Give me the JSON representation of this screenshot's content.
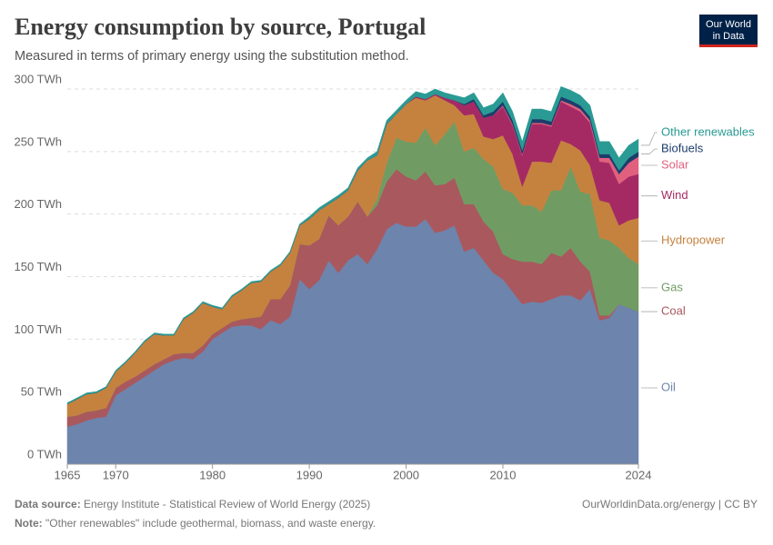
{
  "chart_data": {
    "type": "stacked-area",
    "title": "Energy consumption by source, Portugal",
    "subtitle": "Measured in terms of primary energy using the substitution method.",
    "logo": [
      "Our World",
      "in Data"
    ],
    "source_label": "Data source:",
    "source": "Energy Institute - Statistical Review of World Energy (2025)",
    "source_link": "OurWorldinData.org/energy | CC BY",
    "note_label": "Note:",
    "note": "\"Other renewables\" include geothermal, biomass, and waste energy.",
    "x": [
      1965,
      1966,
      1967,
      1968,
      1969,
      1970,
      1971,
      1972,
      1973,
      1974,
      1975,
      1976,
      1977,
      1978,
      1979,
      1980,
      1981,
      1982,
      1983,
      1984,
      1985,
      1986,
      1987,
      1988,
      1989,
      1990,
      1991,
      1992,
      1993,
      1994,
      1995,
      1996,
      1997,
      1998,
      1999,
      2000,
      2001,
      2002,
      2003,
      2004,
      2005,
      2006,
      2007,
      2008,
      2009,
      2010,
      2011,
      2012,
      2013,
      2014,
      2015,
      2016,
      2017,
      2018,
      2019,
      2020,
      2021,
      2022,
      2023,
      2024
    ],
    "xlim": [
      1965,
      2024
    ],
    "xticks": [
      1965,
      1970,
      1980,
      1990,
      2000,
      2010,
      2024
    ],
    "ylim": [
      0,
      300
    ],
    "yticks": [
      {
        "value": 0,
        "label": "0 TWh"
      },
      {
        "value": 50,
        "label": "50 TWh"
      },
      {
        "value": 100,
        "label": "100 TWh"
      },
      {
        "value": 150,
        "label": "150 TWh"
      },
      {
        "value": 200,
        "label": "200 TWh"
      },
      {
        "value": 250,
        "label": "250 TWh"
      },
      {
        "value": 300,
        "label": "300 TWh"
      }
    ],
    "grid": true,
    "series": [
      {
        "name": "Oil",
        "color": "#6d84ad",
        "values": [
          30,
          32,
          35,
          37,
          38,
          55,
          60,
          65,
          70,
          75,
          80,
          83,
          85,
          84,
          90,
          100,
          105,
          110,
          111,
          111,
          108,
          115,
          112,
          118,
          148,
          140,
          147,
          163,
          153,
          163,
          168,
          160,
          172,
          188,
          193,
          190,
          190,
          196,
          185,
          187,
          191,
          170,
          173,
          163,
          153,
          148,
          138,
          128,
          130,
          129,
          132,
          135,
          135,
          131,
          140,
          115,
          117,
          128,
          125,
          122
        ]
      },
      {
        "name": "Coal",
        "color": "#a9585e",
        "values": [
          8,
          7,
          7,
          6,
          7,
          6,
          6,
          5,
          5,
          5,
          4,
          5,
          4,
          5,
          5,
          4,
          4,
          4,
          5,
          6,
          10,
          17,
          20,
          25,
          28,
          35,
          33,
          36,
          38,
          35,
          42,
          38,
          35,
          38,
          43,
          40,
          37,
          38,
          38,
          37,
          38,
          38,
          35,
          31,
          33,
          20,
          26,
          34,
          32,
          31,
          37,
          31,
          38,
          31,
          14,
          4,
          2,
          0,
          0,
          0
        ]
      },
      {
        "name": "Gas",
        "color": "#709c63",
        "values": [
          0,
          0,
          0,
          0,
          0,
          0,
          0,
          0,
          0,
          0,
          0,
          0,
          0,
          0,
          0,
          0,
          0,
          0,
          0,
          0,
          0,
          0,
          0,
          0,
          0,
          0,
          0,
          0,
          0,
          0,
          0,
          0,
          5,
          15,
          25,
          28,
          30,
          35,
          32,
          40,
          45,
          42,
          45,
          50,
          52,
          52,
          53,
          45,
          45,
          42,
          50,
          53,
          65,
          56,
          62,
          62,
          60,
          45,
          40,
          38
        ]
      },
      {
        "name": "Hydropower",
        "color": "#c5823f",
        "values": [
          10,
          13,
          14,
          14,
          16,
          13,
          15,
          19,
          23,
          24,
          19,
          15,
          27,
          32,
          34,
          22,
          15,
          20,
          23,
          28,
          28,
          22,
          27,
          26,
          15,
          21,
          23,
          9,
          22,
          21,
          25,
          45,
          35,
          31,
          19,
          30,
          36,
          22,
          40,
          27,
          13,
          29,
          27,
          18,
          22,
          43,
          31,
          15,
          35,
          40,
          22,
          40,
          18,
          33,
          23,
          30,
          30,
          18,
          30,
          37
        ]
      },
      {
        "name": "Wind",
        "color": "#a52a64",
        "values": [
          0,
          0,
          0,
          0,
          0,
          0,
          0,
          0,
          0,
          0,
          0,
          0,
          0,
          0,
          0,
          0,
          0,
          0,
          0,
          0,
          0,
          0,
          0,
          0,
          0,
          0,
          0,
          0,
          0,
          0,
          0,
          0,
          0,
          0,
          0,
          0,
          1,
          1,
          1,
          2,
          4,
          8,
          10,
          15,
          19,
          23,
          23,
          25,
          30,
          30,
          29,
          31,
          30,
          31,
          34,
          31,
          32,
          33,
          35,
          35
        ]
      },
      {
        "name": "Solar",
        "color": "#e0607e",
        "values": [
          0,
          0,
          0,
          0,
          0,
          0,
          0,
          0,
          0,
          0,
          0,
          0,
          0,
          0,
          0,
          0,
          0,
          0,
          0,
          0,
          0,
          0,
          0,
          0,
          0,
          0,
          0,
          0,
          0,
          0,
          0,
          0,
          0,
          0,
          0,
          0,
          0,
          0,
          0,
          0,
          0,
          0,
          0,
          0,
          0,
          1,
          1,
          1,
          1,
          1,
          1,
          1,
          2,
          2,
          2,
          3,
          4,
          8,
          11,
          14
        ]
      },
      {
        "name": "Biofuels",
        "color": "#1d3d6b",
        "values": [
          0,
          0,
          0,
          0,
          0,
          0,
          0,
          0,
          0,
          0,
          0,
          0,
          0,
          0,
          0,
          0,
          0,
          0,
          0,
          0,
          0,
          0,
          0,
          0,
          0,
          0,
          0,
          0,
          0,
          0,
          0,
          0,
          0,
          0,
          0,
          0,
          0,
          0,
          0,
          0,
          0,
          1,
          2,
          2,
          3,
          3,
          3,
          3,
          3,
          3,
          3,
          3,
          3,
          3,
          3,
          3,
          3,
          3,
          4,
          4
        ]
      },
      {
        "name": "Other renewables",
        "color": "#2a9b94",
        "values": [
          1,
          1,
          1,
          1,
          1,
          1,
          1,
          1,
          1,
          1,
          1,
          1,
          1,
          1,
          1,
          1,
          1,
          1,
          1,
          1,
          1,
          1,
          1,
          1,
          1,
          2,
          2,
          2,
          2,
          2,
          2,
          2,
          3,
          3,
          3,
          3,
          4,
          4,
          4,
          4,
          4,
          5,
          5,
          6,
          6,
          7,
          7,
          7,
          8,
          8,
          8,
          8,
          8,
          8,
          9,
          10,
          10,
          10,
          10,
          10
        ]
      }
    ]
  }
}
